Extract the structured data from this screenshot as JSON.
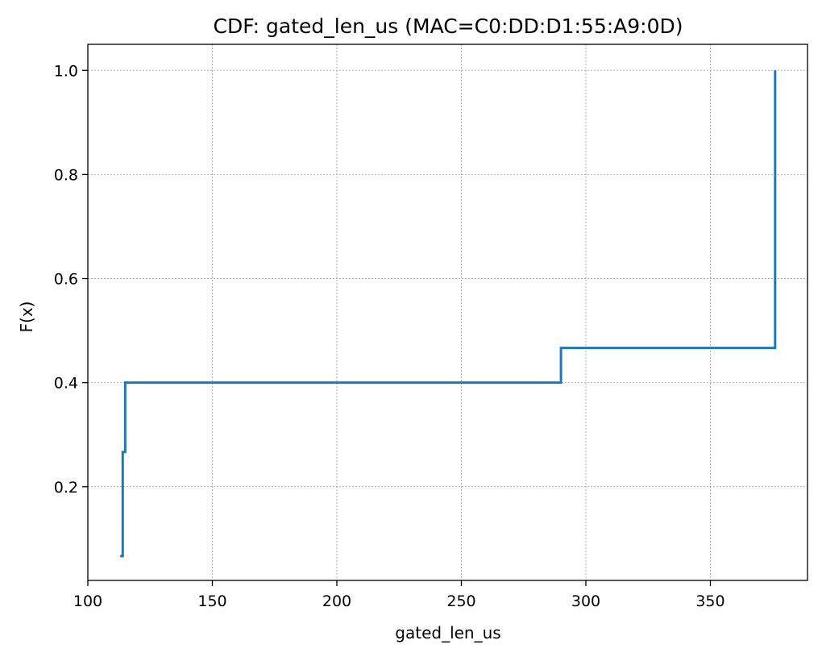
{
  "chart_data": {
    "type": "line",
    "drawstyle": "steps-post",
    "title": "CDF: gated_len_us (MAC=C0:DD:D1:55:A9:0D)",
    "xlabel": "gated_len_us",
    "ylabel": "F(x)",
    "xlim": [
      100,
      389
    ],
    "ylim": [
      0.02,
      1.05
    ],
    "xticks": [
      100,
      150,
      200,
      250,
      300,
      350
    ],
    "xtick_labels": [
      "100",
      "150",
      "200",
      "250",
      "300",
      "350"
    ],
    "yticks": [
      0.2,
      0.4,
      0.6,
      0.8,
      1.0
    ],
    "ytick_labels": [
      "0.2",
      "0.4",
      "0.6",
      "0.8",
      "1.0"
    ],
    "grid": true,
    "series": [
      {
        "color": "#1f77b4",
        "x": [
          113,
          114,
          115,
          290,
          376
        ],
        "y": [
          0.0667,
          0.2667,
          0.4,
          0.4667,
          1.0
        ]
      }
    ]
  }
}
